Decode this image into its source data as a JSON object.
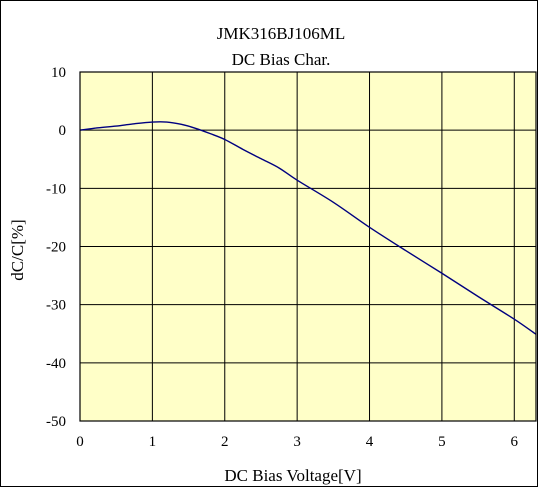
{
  "chart_data": {
    "type": "line",
    "title": "JMK316BJ106ML",
    "subtitle": "DC Bias Char.",
    "xlabel": "DC Bias Voltage[V]",
    "ylabel": "dC/C[%]",
    "xlim": [
      0,
      6.3
    ],
    "ylim": [
      -50,
      10
    ],
    "x_ticks": [
      0,
      1,
      2,
      3,
      4,
      5,
      6
    ],
    "x_tick_labels": [
      "0",
      "1",
      "2",
      "3",
      "4",
      "5",
      "6"
    ],
    "y_ticks": [
      10,
      0,
      -10,
      -20,
      -30,
      -40,
      -50
    ],
    "y_tick_labels": [
      "10",
      "0",
      "-10",
      "-20",
      "-30",
      "-40",
      "-50"
    ],
    "grid": true,
    "plot_background": "#ffffc8",
    "line_color": "#000080",
    "series": [
      {
        "x": [
          0,
          0.25,
          0.5,
          0.75,
          1.0,
          1.2,
          1.4,
          1.6,
          1.8,
          2.0,
          2.25,
          2.5,
          2.75,
          3.0,
          3.5,
          4.0,
          4.5,
          5.0,
          5.5,
          6.0,
          6.3
        ],
        "y": [
          0,
          0.4,
          0.7,
          1.1,
          1.4,
          1.4,
          1.0,
          0.3,
          -0.6,
          -1.6,
          -3.3,
          -4.9,
          -6.5,
          -8.6,
          -12.4,
          -16.7,
          -20.7,
          -24.6,
          -28.6,
          -32.5,
          -35.1
        ]
      }
    ]
  }
}
